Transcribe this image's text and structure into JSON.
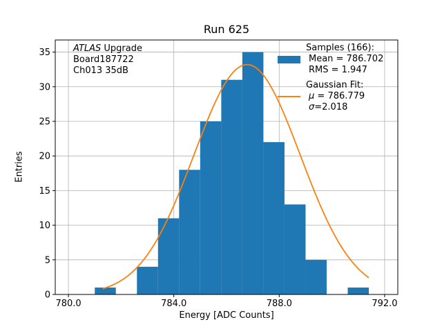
{
  "chart_data": {
    "type": "bar",
    "subtype": "histogram-with-gaussian-fit",
    "title": "Run 625",
    "xlabel": "Energy [ADC Counts]",
    "ylabel": "Entries",
    "xlim": [
      779.5,
      792.5
    ],
    "ylim": [
      0,
      36.75
    ],
    "xticks": [
      780.0,
      784.0,
      788.0,
      792.0
    ],
    "xtick_labels": [
      "780.0",
      "784.0",
      "788.0",
      "792.0"
    ],
    "yticks": [
      0,
      5,
      10,
      15,
      20,
      25,
      30,
      35
    ],
    "grid": true,
    "grid_color": "#b0b0b0",
    "histogram": {
      "name": "Samples",
      "color": "#1f77b4",
      "bin_start": 781.0,
      "bin_width": 0.8,
      "counts": [
        1,
        0,
        4,
        11,
        18,
        25,
        31,
        35,
        22,
        13,
        5,
        0,
        1
      ],
      "n_entries": 166,
      "mean": 786.702,
      "rms": 1.947
    },
    "gaussian_fit": {
      "name": "Gaussian Fit",
      "color": "#ff7f0e",
      "amplitude": 33.2,
      "mu": 786.779,
      "sigma": 2.018,
      "x_range": [
        781.3,
        791.4
      ]
    }
  },
  "annotation": {
    "line1_italic": "ATLAS",
    "line1_rest": " Upgrade",
    "line2": "Board187722",
    "line3": "Ch013 35dB"
  },
  "legend": {
    "samples_header": "Samples (166):",
    "samples_mean": "Mean = 786.702",
    "samples_rms": "RMS = 1.947",
    "fit_header": "Gaussian Fit:",
    "fit_mu_symbol": "μ",
    "fit_mu_value": " = 786.779",
    "fit_sigma_symbol": "σ",
    "fit_sigma_value": "=2.018"
  }
}
